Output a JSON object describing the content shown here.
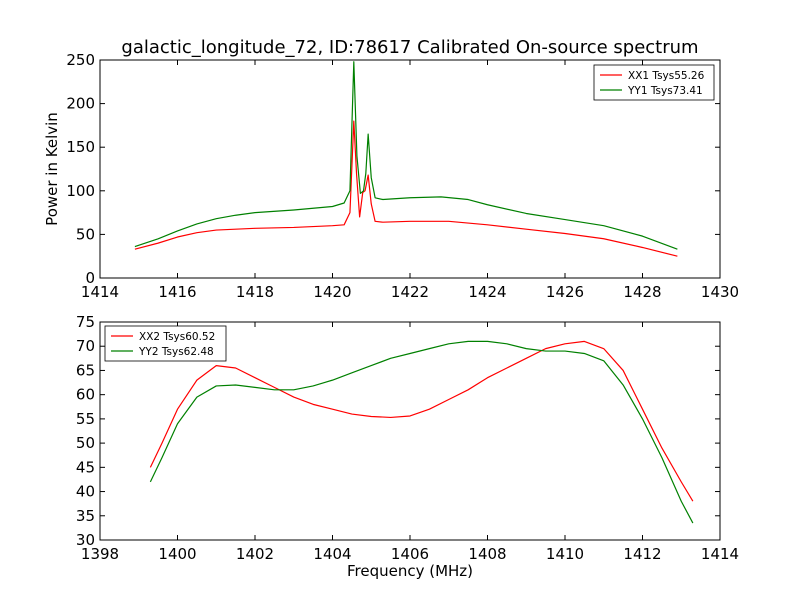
{
  "figure": {
    "title": "galactic_longitude_72, ID:78617 Calibrated On-source spectrum"
  },
  "chart_data": [
    {
      "type": "line",
      "title": "galactic_longitude_72, ID:78617 Calibrated On-source spectrum",
      "xlabel": "",
      "ylabel": "Power in Kelvin",
      "xlim": [
        1414,
        1430
      ],
      "ylim": [
        0,
        250
      ],
      "xticks": [
        "1414",
        "1416",
        "1418",
        "1420",
        "1422",
        "1424",
        "1426",
        "1428",
        "1430"
      ],
      "yticks": [
        "0",
        "50",
        "100",
        "150",
        "200",
        "250"
      ],
      "grid": false,
      "legend_position": "top-right",
      "series": [
        {
          "name": "XX1 Tsys55.26",
          "color": "#ff0000",
          "x": [
            1414.9,
            1415.5,
            1416.0,
            1416.5,
            1417.0,
            1418.0,
            1419.0,
            1420.0,
            1420.3,
            1420.45,
            1420.55,
            1420.62,
            1420.7,
            1420.78,
            1420.84,
            1420.92,
            1421.0,
            1421.1,
            1421.3,
            1422.0,
            1423.0,
            1424.0,
            1425.0,
            1426.0,
            1427.0,
            1428.0,
            1428.9
          ],
          "y": [
            33,
            40,
            47,
            52,
            55,
            57,
            58,
            60,
            61,
            75,
            180,
            120,
            70,
            98,
            100,
            118,
            85,
            65,
            64,
            65,
            65,
            61,
            56,
            51,
            45,
            35,
            25
          ]
        },
        {
          "name": "YY1 Tsys73.41",
          "color": "#008000",
          "x": [
            1414.9,
            1415.5,
            1416.0,
            1416.5,
            1417.0,
            1417.5,
            1418.0,
            1419.0,
            1420.0,
            1420.3,
            1420.45,
            1420.55,
            1420.63,
            1420.72,
            1420.8,
            1420.86,
            1420.92,
            1421.0,
            1421.1,
            1421.3,
            1422.0,
            1422.8,
            1423.5,
            1424.0,
            1425.0,
            1426.0,
            1427.0,
            1428.0,
            1428.9
          ],
          "y": [
            36,
            45,
            54,
            62,
            68,
            72,
            75,
            78,
            82,
            86,
            100,
            248,
            140,
            97,
            100,
            120,
            165,
            115,
            92,
            90,
            92,
            93,
            90,
            84,
            74,
            67,
            60,
            48,
            33
          ]
        }
      ]
    },
    {
      "type": "line",
      "title": "",
      "xlabel": "Frequency (MHz)",
      "ylabel": "",
      "xlim": [
        1398,
        1414
      ],
      "ylim": [
        30,
        75
      ],
      "xticks": [
        "1398",
        "1400",
        "1402",
        "1404",
        "1406",
        "1408",
        "1410",
        "1412",
        "1414"
      ],
      "yticks": [
        "30",
        "35",
        "40",
        "45",
        "50",
        "55",
        "60",
        "65",
        "70",
        "75"
      ],
      "grid": false,
      "legend_position": "top-left",
      "series": [
        {
          "name": "XX2 Tsys60.52",
          "color": "#ff0000",
          "x": [
            1399.3,
            1399.6,
            1400.0,
            1400.5,
            1401.0,
            1401.5,
            1402.0,
            1402.5,
            1403.0,
            1403.5,
            1404.0,
            1404.5,
            1405.0,
            1405.5,
            1406.0,
            1406.5,
            1407.0,
            1407.5,
            1408.0,
            1408.5,
            1409.0,
            1409.5,
            1410.0,
            1410.5,
            1411.0,
            1411.5,
            1412.0,
            1412.5,
            1413.0,
            1413.3
          ],
          "y": [
            45,
            50,
            57,
            63,
            66,
            65.5,
            63.5,
            61.5,
            59.5,
            58,
            57,
            56,
            55.5,
            55.3,
            55.6,
            57,
            59,
            61,
            63.5,
            65.5,
            67.5,
            69.5,
            70.5,
            71,
            69.5,
            65,
            57,
            49,
            42,
            38
          ]
        },
        {
          "name": "YY2 Tsys62.48",
          "color": "#008000",
          "x": [
            1399.3,
            1399.6,
            1400.0,
            1400.5,
            1401.0,
            1401.5,
            1402.0,
            1402.5,
            1403.0,
            1403.5,
            1404.0,
            1404.5,
            1405.0,
            1405.5,
            1406.0,
            1406.5,
            1407.0,
            1407.5,
            1408.0,
            1408.5,
            1409.0,
            1409.5,
            1410.0,
            1410.5,
            1411.0,
            1411.5,
            1412.0,
            1412.5,
            1413.0,
            1413.3
          ],
          "y": [
            42,
            47,
            54,
            59.5,
            61.8,
            62,
            61.5,
            61,
            61,
            61.8,
            63,
            64.5,
            66,
            67.5,
            68.5,
            69.5,
            70.5,
            71,
            71,
            70.5,
            69.5,
            69,
            69,
            68.5,
            67,
            62,
            55,
            47,
            38,
            33.5
          ]
        }
      ]
    }
  ]
}
